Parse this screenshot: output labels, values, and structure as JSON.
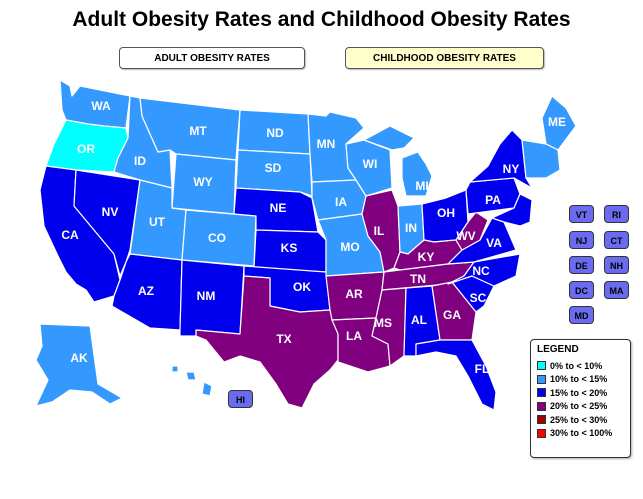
{
  "title": "Adult Obesity Rates and Childhood Obesity Rates",
  "toggles": {
    "adult": "ADULT OBESITY RATES",
    "childhood": "CHILDHOOD OBESITY RATES"
  },
  "colors": {
    "r0_10": "#00ffff",
    "r10_15": "#3399ff",
    "r15_20": "#0000ee",
    "r20_25": "#800080",
    "r25_30": "#a00000",
    "r30_100": "#ff0000"
  },
  "states": {
    "WA": {
      "label": "WA",
      "bin": "r10_15"
    },
    "OR": {
      "label": "OR",
      "bin": "r0_10"
    },
    "CA": {
      "label": "CA",
      "bin": "r15_20"
    },
    "NV": {
      "label": "NV",
      "bin": "r15_20"
    },
    "ID": {
      "label": "ID",
      "bin": "r10_15"
    },
    "MT": {
      "label": "MT",
      "bin": "r10_15"
    },
    "WY": {
      "label": "WY",
      "bin": "r10_15"
    },
    "UT": {
      "label": "UT",
      "bin": "r10_15"
    },
    "AZ": {
      "label": "AZ",
      "bin": "r15_20"
    },
    "CO": {
      "label": "CO",
      "bin": "r10_15"
    },
    "NM": {
      "label": "NM",
      "bin": "r15_20"
    },
    "ND": {
      "label": "ND",
      "bin": "r10_15"
    },
    "SD": {
      "label": "SD",
      "bin": "r10_15"
    },
    "NE": {
      "label": "NE",
      "bin": "r15_20"
    },
    "KS": {
      "label": "KS",
      "bin": "r15_20"
    },
    "OK": {
      "label": "OK",
      "bin": "r15_20"
    },
    "TX": {
      "label": "TX",
      "bin": "r20_25"
    },
    "MN": {
      "label": "MN",
      "bin": "r10_15"
    },
    "IA": {
      "label": "IA",
      "bin": "r10_15"
    },
    "MO": {
      "label": "MO",
      "bin": "r10_15"
    },
    "AR": {
      "label": "AR",
      "bin": "r20_25"
    },
    "LA": {
      "label": "LA",
      "bin": "r20_25"
    },
    "WI": {
      "label": "WI",
      "bin": "r10_15"
    },
    "IL": {
      "label": "IL",
      "bin": "r20_25"
    },
    "MI": {
      "label": "MI",
      "bin": "r10_15"
    },
    "IN": {
      "label": "IN",
      "bin": "r10_15"
    },
    "OH": {
      "label": "OH",
      "bin": "r15_20"
    },
    "KY": {
      "label": "KY",
      "bin": "r20_25"
    },
    "TN": {
      "label": "TN",
      "bin": "r20_25"
    },
    "MS": {
      "label": "MS",
      "bin": "r20_25"
    },
    "AL": {
      "label": "AL",
      "bin": "r15_20"
    },
    "GA": {
      "label": "GA",
      "bin": "r20_25"
    },
    "FL": {
      "label": "FL",
      "bin": "r15_20"
    },
    "SC": {
      "label": "SC",
      "bin": "r15_20"
    },
    "NC": {
      "label": "NC",
      "bin": "r15_20"
    },
    "VA": {
      "label": "VA",
      "bin": "r15_20"
    },
    "WV": {
      "label": "WV",
      "bin": "r20_25"
    },
    "PA": {
      "label": "PA",
      "bin": "r15_20"
    },
    "NY": {
      "label": "NY",
      "bin": "r15_20"
    },
    "ME": {
      "label": "ME",
      "bin": "r10_15"
    },
    "NE_small": {
      "label": "",
      "bin": "r10_15"
    },
    "NJ_MD_DE": {
      "label": "",
      "bin": "r15_20"
    },
    "AK": {
      "label": "AK",
      "bin": "r10_15"
    },
    "HI": {
      "label": "HI",
      "bin": "r10_15"
    }
  },
  "small_states": [
    "VT",
    "RI",
    "NJ",
    "CT",
    "DE",
    "NH",
    "DC",
    "MA",
    "MD"
  ],
  "hi_button": "HI",
  "legend": {
    "title": "LEGEND",
    "items": [
      {
        "label": "0% to < 10%",
        "bin": "r0_10"
      },
      {
        "label": "10% to < 15%",
        "bin": "r10_15"
      },
      {
        "label": "15% to < 20%",
        "bin": "r15_20"
      },
      {
        "label": "20% to < 25%",
        "bin": "r20_25"
      },
      {
        "label": "25% to < 30%",
        "bin": "r25_30"
      },
      {
        "label": "30% to < 100%",
        "bin": "r30_100"
      }
    ]
  }
}
